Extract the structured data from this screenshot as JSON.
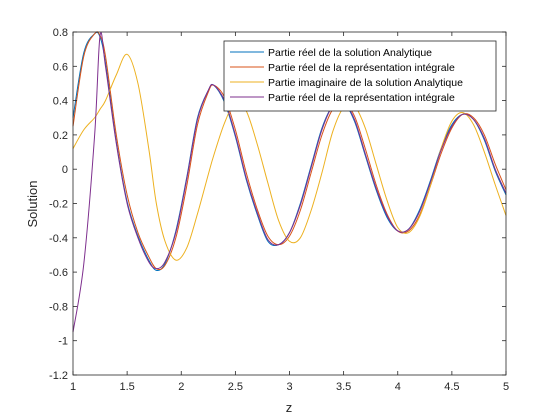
{
  "chart_data": {
    "type": "line",
    "xlabel": "z",
    "ylabel": "Solution",
    "xlim": [
      1,
      5
    ],
    "ylim": [
      -1.2,
      0.8
    ],
    "x_ticks": [
      1,
      1.5,
      2,
      2.5,
      3,
      3.5,
      4,
      4.5,
      5
    ],
    "y_ticks": [
      -1.2,
      -1,
      -0.8,
      -0.6,
      -0.4,
      -0.2,
      0,
      0.2,
      0.4,
      0.6,
      0.8
    ],
    "x_tick_labels": [
      "1",
      "1.5",
      "2",
      "2.5",
      "3",
      "3.5",
      "4",
      "4.5",
      "5"
    ],
    "y_tick_labels": [
      "-1.2",
      "-1",
      "-0.8",
      "-0.6",
      "-0.4",
      "-0.2",
      "0",
      "0.2",
      "0.4",
      "0.6",
      "0.8"
    ],
    "grid": false,
    "legend_position": "top-right",
    "x": [
      1.0,
      1.1,
      1.2,
      1.25,
      1.3,
      1.4,
      1.5,
      1.6,
      1.7,
      1.77,
      1.85,
      1.95,
      2.05,
      2.15,
      2.25,
      2.3,
      2.4,
      2.5,
      2.6,
      2.7,
      2.8,
      2.9,
      3.0,
      3.1,
      3.2,
      3.3,
      3.4,
      3.5,
      3.6,
      3.7,
      3.8,
      3.9,
      4.0,
      4.1,
      4.2,
      4.3,
      4.4,
      4.5,
      4.6,
      4.7,
      4.8,
      4.9,
      5.0
    ],
    "series": [
      {
        "name": "Partie réel de la solution Analytique",
        "color": "#0072BD",
        "values": [
          0.3,
          0.68,
          0.79,
          0.77,
          0.62,
          0.16,
          -0.19,
          -0.39,
          -0.53,
          -0.59,
          -0.55,
          -0.36,
          -0.05,
          0.3,
          0.46,
          0.49,
          0.39,
          0.19,
          -0.06,
          -0.26,
          -0.42,
          -0.44,
          -0.37,
          -0.2,
          0.02,
          0.24,
          0.37,
          0.39,
          0.28,
          0.08,
          -0.12,
          -0.28,
          -0.36,
          -0.35,
          -0.24,
          -0.07,
          0.12,
          0.26,
          0.32,
          0.29,
          0.17,
          -0.01,
          -0.15
        ]
      },
      {
        "name": "Partie réel de la représentation intégrale",
        "color": "#D95319",
        "values": [
          0.25,
          0.66,
          0.79,
          0.78,
          0.66,
          0.2,
          -0.15,
          -0.37,
          -0.51,
          -0.58,
          -0.56,
          -0.4,
          -0.1,
          0.26,
          0.45,
          0.49,
          0.42,
          0.23,
          -0.02,
          -0.23,
          -0.39,
          -0.44,
          -0.39,
          -0.24,
          -0.02,
          0.2,
          0.35,
          0.39,
          0.31,
          0.12,
          -0.09,
          -0.26,
          -0.36,
          -0.36,
          -0.27,
          -0.1,
          0.09,
          0.24,
          0.32,
          0.3,
          0.2,
          0.03,
          -0.12
        ]
      },
      {
        "name": "Partie imaginaire de la solution Analytique",
        "color": "#EDB120",
        "values": [
          0.12,
          0.23,
          0.3,
          0.35,
          0.4,
          0.55,
          0.67,
          0.5,
          0.12,
          -0.2,
          -0.42,
          -0.53,
          -0.46,
          -0.26,
          -0.03,
          0.08,
          0.27,
          0.39,
          0.34,
          0.15,
          -0.08,
          -0.3,
          -0.42,
          -0.4,
          -0.24,
          -0.02,
          0.22,
          0.36,
          0.37,
          0.24,
          0.03,
          -0.18,
          -0.34,
          -0.37,
          -0.28,
          -0.1,
          0.12,
          0.28,
          0.33,
          0.26,
          0.1,
          -0.09,
          -0.27
        ]
      },
      {
        "name": "Partie réel de la représentation intégrale",
        "color": "#7E2F8E",
        "values": [
          -0.95,
          -0.55,
          0.2,
          0.78,
          0.6,
          0.15,
          -0.2,
          -0.4,
          -0.54,
          -0.58,
          -0.54,
          -0.37,
          -0.06,
          0.29,
          0.46,
          0.49,
          0.4,
          0.2,
          -0.05,
          -0.25,
          -0.41,
          -0.44,
          -0.37,
          -0.21,
          0.01,
          0.23,
          0.37,
          0.39,
          0.29,
          0.09,
          -0.11,
          -0.27,
          -0.36,
          -0.35,
          -0.25,
          -0.08,
          0.11,
          0.25,
          0.32,
          0.29,
          0.18,
          0.0,
          -0.14
        ]
      }
    ]
  }
}
